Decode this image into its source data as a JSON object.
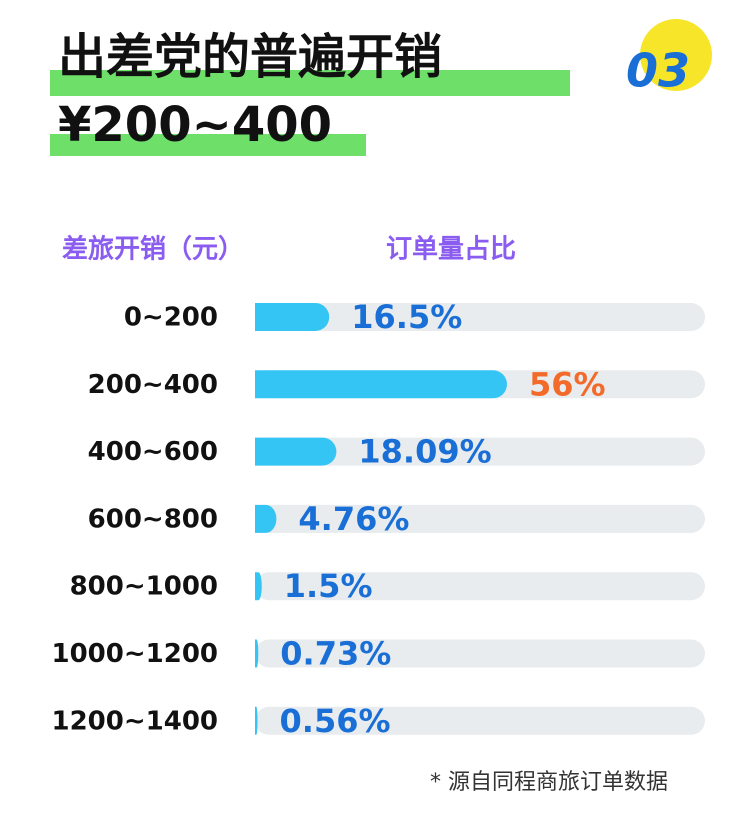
{
  "chart_data": {
    "type": "bar",
    "orientation": "horizontal",
    "title": "出差党的普遍开销",
    "subtitle": "¥200~400",
    "badge": "03",
    "category_header": "差旅开销（元）",
    "value_header": "订单量占比",
    "categories": [
      "0~200",
      "200~400",
      "400~600",
      "600~800",
      "800~1000",
      "1000~1200",
      "1200~1400"
    ],
    "values": [
      16.5,
      56,
      18.09,
      4.76,
      1.5,
      0.73,
      0.56
    ],
    "value_labels": [
      "16.5%",
      "56%",
      "18.09%",
      "4.76%",
      "1.5%",
      "0.73%",
      "0.56%"
    ],
    "value_label_colors": [
      "#1a6fd6",
      "#f26b2a",
      "#1a6fd6",
      "#1a6fd6",
      "#1a6fd6",
      "#1a6fd6",
      "#1a6fd6"
    ],
    "color": "#35c5f5",
    "track_color": "#e8ecee",
    "xlim": [
      0,
      100
    ],
    "note": "* 源自同程商旅订单数据"
  }
}
